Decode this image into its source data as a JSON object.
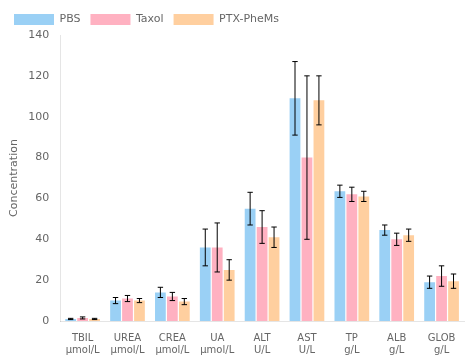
{
  "chart_data": {
    "type": "bar",
    "y_label": "Concentration",
    "categories": [
      "TBIL\nμmol/L",
      "UREA\nμmol/L",
      "CREA\nμmol/L",
      "UA\nμmol/L",
      "ALT\nU/L",
      "AST\nU/L",
      "TP\ng/L",
      "ALB\ng/L",
      "GLOB\ng/L"
    ],
    "series": [
      {
        "name": "PBS",
        "values": [
          1.0,
          10.0,
          14.0,
          36.0,
          55.0,
          109.0,
          63.5,
          44.5,
          19.0
        ],
        "errors": [
          0.3,
          1.5,
          2.5,
          9.0,
          8.0,
          18.0,
          3.0,
          2.5,
          3.0
        ]
      },
      {
        "name": "Taxol",
        "values": [
          1.5,
          11.0,
          12.0,
          36.0,
          46.0,
          80.0,
          62.0,
          40.0,
          22.0
        ],
        "errors": [
          0.5,
          1.5,
          2.0,
          12.0,
          8.0,
          40.0,
          3.5,
          3.0,
          5.0
        ]
      },
      {
        "name": "PTX-PheMs",
        "values": [
          1.0,
          10.0,
          9.5,
          25.0,
          41.0,
          108.0,
          61.0,
          42.0,
          19.5
        ],
        "errors": [
          0.3,
          1.0,
          1.5,
          5.0,
          5.0,
          12.0,
          2.5,
          3.0,
          3.5
        ]
      }
    ],
    "ylim": [
      0,
      140
    ],
    "yticks": [
      0,
      20,
      40,
      60,
      80,
      100,
      120,
      140
    ],
    "grid": false,
    "legend": "upper left"
  }
}
